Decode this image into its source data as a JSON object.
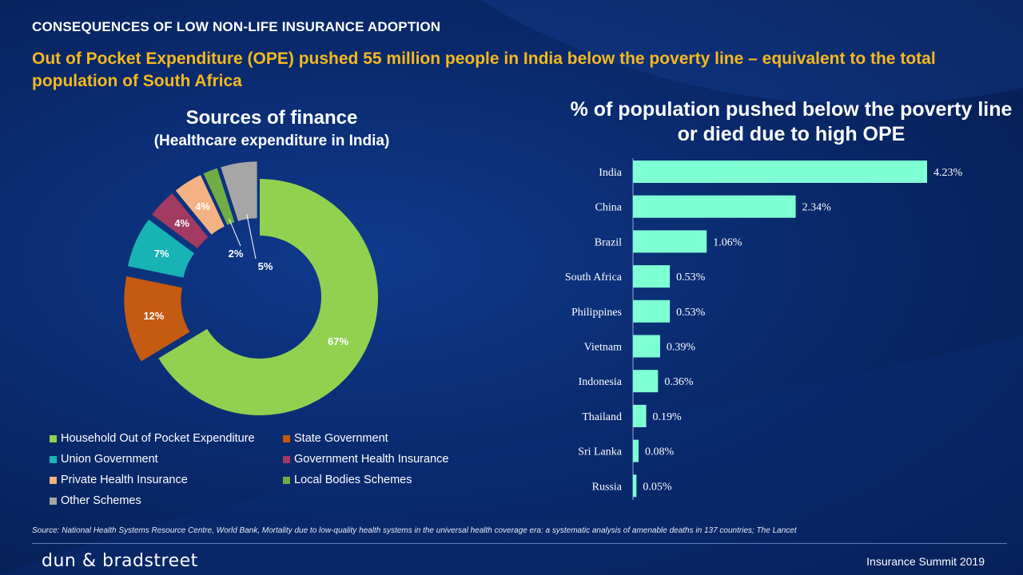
{
  "header": "CONSEQUENCES OF LOW NON-LIFE INSURANCE ADOPTION",
  "subtitle": "Out of Pocket Expenditure (OPE) pushed 55 million people in India below the poverty line – equivalent to the total population of South Africa",
  "chart_data": [
    {
      "type": "pie",
      "title": "Sources of finance",
      "subtitle": "(Healthcare expenditure in India)",
      "categories": [
        "Household Out of Pocket Expenditure",
        "State Government",
        "Union Government",
        "Government Health Insurance",
        "Private Health Insurance",
        "Local Bodies Schemes",
        "Other Schemes"
      ],
      "values": [
        67,
        12,
        7,
        4,
        4,
        2,
        5
      ],
      "labels": [
        "67%",
        "12%",
        "7%",
        "4%",
        "4%",
        "2%",
        "5%"
      ],
      "colors": [
        "#92d050",
        "#c55a11",
        "#17b3b5",
        "#a23a62",
        "#f4b183",
        "#70ad47",
        "#a6a6a6"
      ],
      "style": "exploded donut",
      "legend_position": "bottom"
    },
    {
      "type": "bar",
      "orientation": "horizontal",
      "title": "% of population pushed below the poverty line or died due to high OPE",
      "categories": [
        "India",
        "China",
        "Brazil",
        "South Africa",
        "Philippines",
        "Vietnam",
        "Indonesia",
        "Thailand",
        "Sri Lanka",
        "Russia"
      ],
      "values": [
        4.23,
        2.34,
        1.06,
        0.53,
        0.53,
        0.39,
        0.36,
        0.19,
        0.08,
        0.05
      ],
      "labels": [
        "4.23%",
        "2.34%",
        "1.06%",
        "0.53%",
        "0.53%",
        "0.39%",
        "0.36%",
        "0.19%",
        "0.08%",
        "0.05%"
      ],
      "color": "#7fffd4",
      "xlim": [
        0,
        4.5
      ]
    }
  ],
  "source": "Source: National Health Systems Resource Centre, World Bank, Mortality due to low-quality health systems in the universal health coverage era: a systematic analysis of amenable deaths in 137 countries; The Lancet",
  "footer": {
    "brand": "dun & bradstreet",
    "event": "Insurance Summit 2019"
  }
}
